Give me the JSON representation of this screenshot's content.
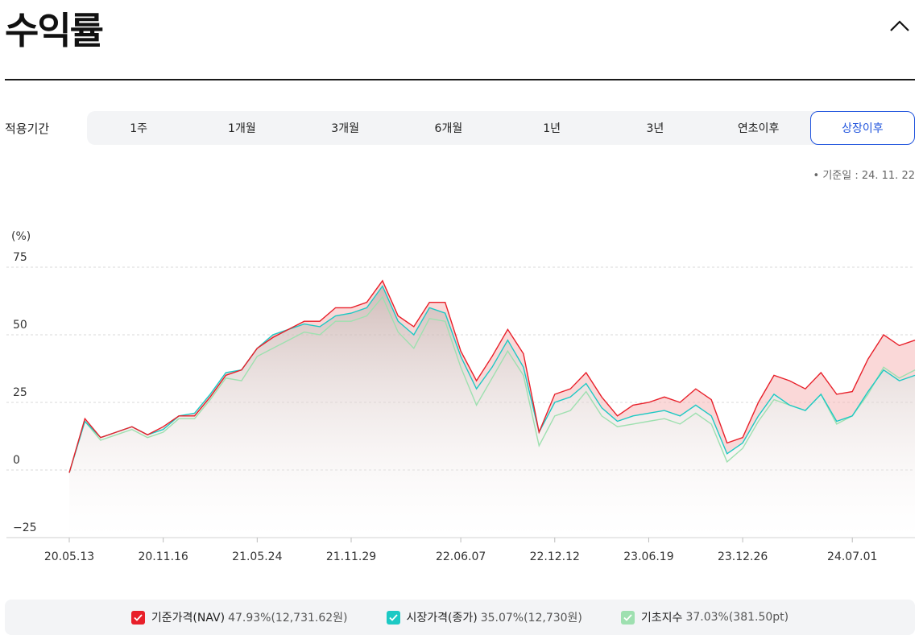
{
  "page": {
    "title": "수익률"
  },
  "period": {
    "label": "적용기간",
    "tabs": [
      "1주",
      "1개월",
      "3개월",
      "6개월",
      "1년",
      "3년",
      "연초이후",
      "상장이후"
    ],
    "active": "상장이후"
  },
  "base_date": "기준일 : 24. 11. 22",
  "legend": [
    {
      "name": "기준가격(NAV)",
      "value": "47.93%(12,731.62원)",
      "color": "#e8202a"
    },
    {
      "name": "시장가격(종가)",
      "value": "35.07%(12,730원)",
      "color": "#1cc9c4"
    },
    {
      "name": "기초지수",
      "value": "37.03%(381.50pt)",
      "color": "#9ee0b0"
    }
  ],
  "chart_data": {
    "type": "area",
    "ylabel": "(%)",
    "ylim": [
      -25,
      75
    ],
    "yticks": [
      75,
      50,
      25,
      0,
      -25
    ],
    "x_tick_labels": [
      "20.05.13",
      "20.11.16",
      "21.05.24",
      "21.11.29",
      "22.06.07",
      "22.12.12",
      "23.06.19",
      "23.12.26",
      "24.07.01"
    ],
    "x": [
      "20.05.13",
      "20.06",
      "20.07",
      "20.08",
      "20.09",
      "20.10",
      "20.11.16",
      "20.12",
      "21.01",
      "21.02",
      "21.03",
      "21.04",
      "21.05.24",
      "21.06",
      "21.07",
      "21.08",
      "21.09",
      "21.10",
      "21.11.29",
      "21.12",
      "22.01",
      "22.02",
      "22.03",
      "22.04",
      "22.05",
      "22.06.07",
      "22.07",
      "22.08",
      "22.09",
      "22.10",
      "22.11",
      "22.12.12",
      "23.01",
      "23.02",
      "23.03",
      "23.04",
      "23.05",
      "23.06.19",
      "23.07",
      "23.08",
      "23.09",
      "23.10",
      "23.11",
      "23.12.26",
      "24.01",
      "24.02",
      "24.03",
      "24.04",
      "24.05",
      "24.06",
      "24.07.01",
      "24.08",
      "24.09",
      "24.10",
      "24.11.22"
    ],
    "series": [
      {
        "name": "기준가격(NAV)",
        "color": "#e8202a",
        "values": [
          -1,
          19,
          12,
          14,
          16,
          13,
          16,
          20,
          20,
          27,
          35,
          37,
          45,
          49,
          52,
          55,
          55,
          60,
          60,
          62,
          70,
          57,
          53,
          62,
          62,
          44,
          33,
          42,
          52,
          43,
          14,
          28,
          30,
          36,
          27,
          20,
          24,
          25,
          27,
          25,
          30,
          26,
          10,
          12,
          25,
          35,
          33,
          30,
          36,
          28,
          29,
          41,
          50,
          46,
          48
        ]
      },
      {
        "name": "시장가격(종가)",
        "color": "#1cc9c4",
        "values": [
          -1,
          18,
          12,
          14,
          16,
          13,
          15,
          20,
          21,
          28,
          36,
          37,
          45,
          50,
          52,
          54,
          53,
          57,
          58,
          60,
          68,
          55,
          50,
          60,
          58,
          42,
          30,
          38,
          48,
          38,
          14,
          25,
          27,
          32,
          23,
          18,
          20,
          21,
          22,
          20,
          24,
          20,
          6,
          10,
          20,
          28,
          24,
          22,
          28,
          18,
          20,
          29,
          37,
          33,
          35
        ]
      },
      {
        "name": "기초지수",
        "color": "#9ee0b0",
        "values": [
          -1,
          18,
          11,
          13,
          15,
          12,
          14,
          19,
          19,
          26,
          34,
          33,
          42,
          45,
          48,
          51,
          50,
          55,
          55,
          57,
          64,
          51,
          45,
          56,
          55,
          38,
          24,
          34,
          44,
          35,
          9,
          20,
          22,
          29,
          20,
          16,
          17,
          18,
          19,
          17,
          21,
          17,
          3,
          8,
          18,
          26,
          24,
          22,
          28,
          17,
          20,
          28,
          38,
          34,
          37
        ]
      }
    ],
    "grid": true
  }
}
